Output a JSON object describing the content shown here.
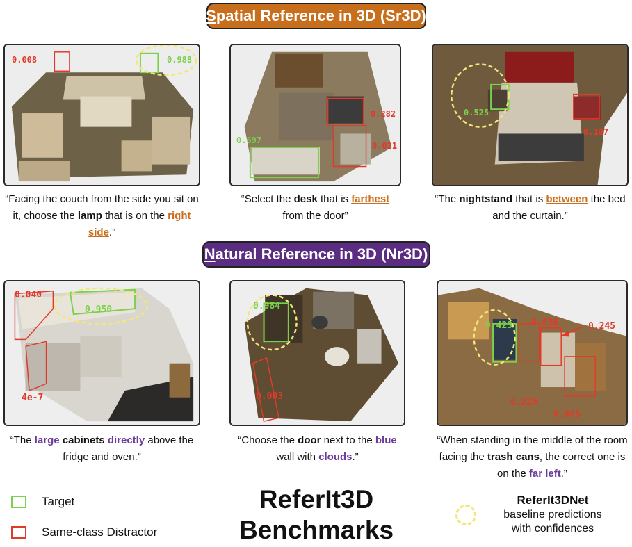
{
  "header_sr3d": {
    "prefix": "S",
    "rest": "patial Reference in 3D (Sr3D)"
  },
  "header_nr3d": {
    "prefix": "N",
    "rest": "atural Reference in 3D (Nr3D)"
  },
  "colors": {
    "target": "#7bd14b",
    "distractor": "#e23a2a",
    "sr3d_accent": "#c86f1e",
    "nr3d_accent": "#5b2d82",
    "prediction": "#f1e77a"
  },
  "panels": {
    "p1": {
      "c1": "0.008",
      "c2": "0.988"
    },
    "p2": {
      "c1": "0.282",
      "c2": "0.697",
      "c3": "0.021"
    },
    "p3": {
      "c1": "0.525",
      "c2": "0.107"
    },
    "p4": {
      "c1": "0.040",
      "c2": "0.950",
      "c3": "4e-7"
    },
    "p5": {
      "c1": "0.984",
      "c2": "0.003"
    },
    "p6": {
      "c1": "0.423",
      "c2": "0.036",
      "c3": "0.245",
      "c4": "0.229",
      "c5": "0.065"
    }
  },
  "captions": {
    "c1": {
      "a": "“Facing the couch from the side you sit on it, choose the ",
      "b": "lamp",
      "c": " that is on the ",
      "d": "right side",
      "e": ".”"
    },
    "c2": {
      "a": "“Select the ",
      "b": "desk",
      "c": " that is ",
      "d": "farthest",
      "e": " from the door”"
    },
    "c3": {
      "a": "“The ",
      "b": "nightstand",
      "c": " that is ",
      "d": "between",
      "e": " the bed and the curtain.”"
    },
    "c4": {
      "a": "“The ",
      "b": "large",
      "c": " ",
      "d": "cabinets",
      "e": " ",
      "f": "directly",
      "g": " above the fridge and oven.”"
    },
    "c5": {
      "a": "“Choose the ",
      "b": "door",
      "c": " next to the ",
      "d": "blue",
      "e": " wall with ",
      "f": "clouds",
      "g": ".”"
    },
    "c6": {
      "a": "“When standing in the middle of the room facing the ",
      "b": "trash cans",
      "c": ", the correct one is on the ",
      "d": "far left",
      "e": ".”"
    }
  },
  "legend": {
    "target": "Target",
    "distractor": "Same-class Distractor"
  },
  "title": {
    "line1": "ReferIt3D",
    "line2": "Benchmarks"
  },
  "net": {
    "name": "ReferIt3DNet",
    "desc1": "baseline predictions",
    "desc2": "with confidences"
  }
}
